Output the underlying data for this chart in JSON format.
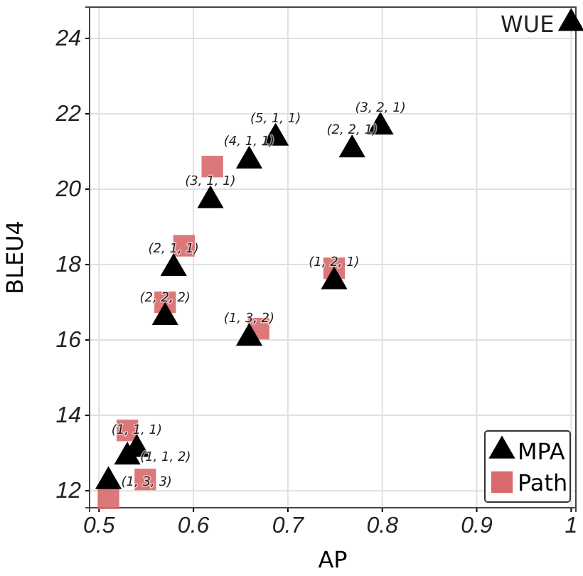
{
  "chart_data": {
    "type": "scatter",
    "xlabel": "AP",
    "ylabel": "BLEU4",
    "xlim": [
      0.49,
      1.005
    ],
    "ylim": [
      11.55,
      24.83
    ],
    "xticks": [
      0.5,
      0.6,
      0.7,
      0.8,
      0.9,
      1
    ],
    "yticks": [
      12,
      14,
      16,
      18,
      20,
      22,
      24
    ],
    "grid": true,
    "legend": "bottom right",
    "series": [
      {
        "name": "MPA",
        "color": "#000000",
        "marker": "triangle",
        "x": [
          0.687,
          0.659,
          0.618,
          0.579,
          0.57,
          0.659,
          0.749,
          0.768,
          0.798,
          1.0,
          0.54,
          0.53,
          0.51
        ],
        "values": [
          21.36,
          20.75,
          19.7,
          17.9,
          16.6,
          16.05,
          17.55,
          21.05,
          21.65,
          24.4,
          13.1,
          12.9,
          12.25
        ]
      },
      {
        "name": "Path",
        "color": "#d9696b",
        "marker": "square",
        "x": [
          0.62,
          0.59,
          0.57,
          0.669,
          0.749,
          0.53,
          0.549,
          0.51
        ],
        "values": [
          20.6,
          18.5,
          17.0,
          16.3,
          17.9,
          13.6,
          12.3,
          11.8
        ]
      }
    ],
    "annotations": [
      {
        "text": "(5, 1, 1)",
        "x": 0.687,
        "y": 21.36
      },
      {
        "text": "(4, 1, 1)",
        "x": 0.659,
        "y": 20.75
      },
      {
        "text": "(3, 1, 1)",
        "x": 0.618,
        "y": 19.7
      },
      {
        "text": "(2, 1, 1)",
        "x": 0.579,
        "y": 17.9
      },
      {
        "text": "(2, 2, 2)",
        "x": 0.57,
        "y": 16.6
      },
      {
        "text": "(1, 3, 2)",
        "x": 0.659,
        "y": 16.05
      },
      {
        "text": "(1, 2, 1)",
        "x": 0.749,
        "y": 17.55
      },
      {
        "text": "(2, 2, 1)",
        "x": 0.768,
        "y": 21.05
      },
      {
        "text": "(3, 2, 1)",
        "x": 0.798,
        "y": 21.65
      },
      {
        "text": "WUE",
        "x": 1.0,
        "y": 24.4
      },
      {
        "text": "(1, 1, 1)",
        "x": 0.54,
        "y": 13.1
      },
      {
        "text": "(1, 1, 2)",
        "x": 0.53,
        "y": 12.9
      },
      {
        "text": "(1, 3, 3)",
        "x": 0.51,
        "y": 12.25
      }
    ]
  }
}
